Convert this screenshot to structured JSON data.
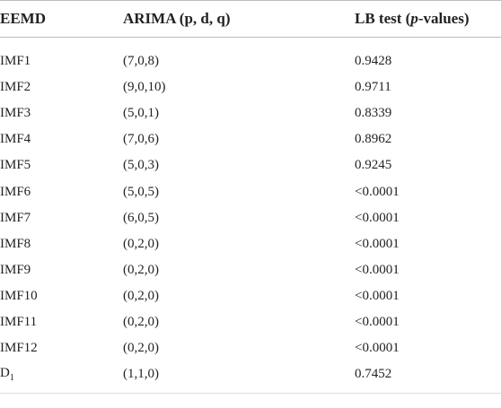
{
  "table": {
    "header": [
      [
        "EEMD"
      ],
      [
        "ARIMA (p, d, q)"
      ],
      [
        "LB test (",
        "p",
        "-values)"
      ]
    ],
    "rows": [
      [
        [
          "IMF1"
        ],
        [
          "(7,0,8)"
        ],
        [
          "0.9428"
        ]
      ],
      [
        [
          "IMF2"
        ],
        [
          "(9,0,10)"
        ],
        [
          "0.9711"
        ]
      ],
      [
        [
          "IMF3"
        ],
        [
          "(5,0,1)"
        ],
        [
          "0.8339"
        ]
      ],
      [
        [
          "IMF4"
        ],
        [
          "(7,0,6)"
        ],
        [
          "0.8962"
        ]
      ],
      [
        [
          "IMF5"
        ],
        [
          "(5,0,3)"
        ],
        [
          "0.9245"
        ]
      ],
      [
        [
          "IMF6"
        ],
        [
          "(5,0,5)"
        ],
        [
          "<0.0001"
        ]
      ],
      [
        [
          "IMF7"
        ],
        [
          "(6,0,5)"
        ],
        [
          "<0.0001"
        ]
      ],
      [
        [
          "IMF8"
        ],
        [
          "(0,2,0)"
        ],
        [
          "<0.0001"
        ]
      ],
      [
        [
          "IMF9"
        ],
        [
          "(0,2,0)"
        ],
        [
          "<0.0001"
        ]
      ],
      [
        [
          "IMF10"
        ],
        [
          "(0,2,0)"
        ],
        [
          "<0.0001"
        ]
      ],
      [
        [
          "IMF11"
        ],
        [
          "(0,2,0)"
        ],
        [
          "<0.0001"
        ]
      ],
      [
        [
          "IMF12"
        ],
        [
          "(0,2,0)"
        ],
        [
          "<0.0001"
        ]
      ],
      [
        [
          "D",
          "1"
        ],
        [
          "(1,1,0)"
        ],
        [
          "0.7452"
        ]
      ]
    ]
  }
}
